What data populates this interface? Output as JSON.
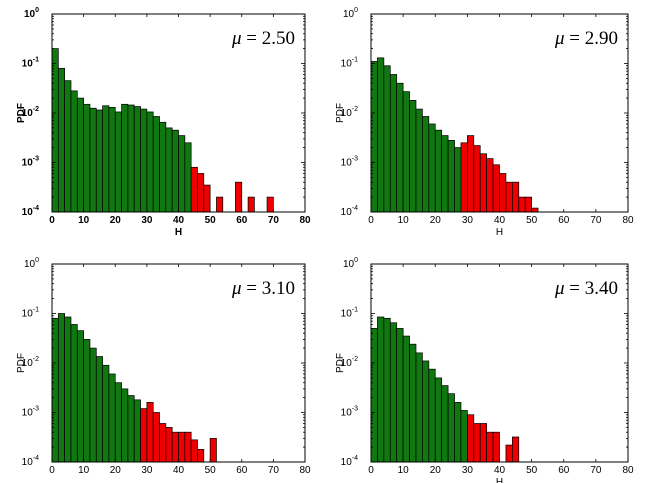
{
  "colors": {
    "green": "#117711",
    "red": "#ee0000",
    "axis": "#000000"
  },
  "chart_data": [
    {
      "type": "bar",
      "title": "",
      "annotation": {
        "symbol": "μ",
        "text": "= 2.50"
      },
      "xlabel": "H",
      "ylabel": "PDF",
      "bold_labels": true,
      "xlim": [
        0,
        80
      ],
      "ylim": [
        0.0001,
        1
      ],
      "yscale": "log",
      "xticks": [
        "0",
        "10",
        "20",
        "30",
        "40",
        "50",
        "60",
        "70",
        "80"
      ],
      "yticks": [
        {
          "base": "10",
          "exp": "0"
        },
        {
          "base": "10",
          "exp": "-1"
        },
        {
          "base": "10",
          "exp": "-2"
        },
        {
          "base": "10",
          "exp": "-3"
        },
        {
          "base": "10",
          "exp": "-4"
        }
      ],
      "bin_width": 2,
      "series": [
        {
          "color": "green",
          "x": [
            0,
            2,
            4,
            6,
            8,
            10,
            12,
            14,
            16,
            18,
            20,
            22,
            24,
            26,
            28,
            30,
            32,
            34,
            36,
            38,
            40,
            42
          ],
          "values": [
            0.2,
            0.08,
            0.045,
            0.028,
            0.02,
            0.015,
            0.0125,
            0.0115,
            0.014,
            0.013,
            0.0105,
            0.015,
            0.0145,
            0.0135,
            0.012,
            0.0105,
            0.0085,
            0.0065,
            0.005,
            0.0045,
            0.0035,
            0.0025
          ]
        },
        {
          "color": "red",
          "x": [
            44,
            46,
            48,
            52,
            58,
            62,
            68
          ],
          "values": [
            0.0008,
            0.0006,
            0.00035,
            0.0002,
            0.0004,
            0.0002,
            0.0002
          ]
        }
      ]
    },
    {
      "type": "bar",
      "title": "",
      "annotation": {
        "symbol": "μ",
        "text": "= 2.90"
      },
      "xlabel": "H",
      "ylabel": "PDF",
      "bold_labels": false,
      "xlim": [
        0,
        80
      ],
      "ylim": [
        0.0001,
        1
      ],
      "yscale": "log",
      "xticks": [
        "0",
        "10",
        "20",
        "30",
        "40",
        "50",
        "60",
        "70",
        "80"
      ],
      "yticks": [
        {
          "base": "10",
          "exp": "0"
        },
        {
          "base": "10",
          "exp": "-1"
        },
        {
          "base": "10",
          "exp": "-2"
        },
        {
          "base": "10",
          "exp": "-3"
        },
        {
          "base": "10",
          "exp": "-4"
        }
      ],
      "bin_width": 2,
      "series": [
        {
          "color": "green",
          "x": [
            0,
            2,
            4,
            6,
            8,
            10,
            12,
            14,
            16,
            18,
            20,
            22,
            24,
            26
          ],
          "values": [
            0.11,
            0.13,
            0.09,
            0.06,
            0.04,
            0.027,
            0.018,
            0.012,
            0.0085,
            0.006,
            0.0045,
            0.0035,
            0.0028,
            0.002
          ]
        },
        {
          "color": "red",
          "x": [
            28,
            30,
            32,
            34,
            36,
            38,
            40,
            42,
            44,
            46,
            48,
            50
          ],
          "values": [
            0.0025,
            0.0035,
            0.0022,
            0.0015,
            0.0012,
            0.0009,
            0.0006,
            0.0004,
            0.0004,
            0.0002,
            0.0002,
            0.00012
          ]
        }
      ]
    },
    {
      "type": "bar",
      "title": "",
      "annotation": {
        "symbol": "μ",
        "text": "= 3.10"
      },
      "xlabel": "",
      "ylabel": "PDF",
      "bold_labels": false,
      "xlim": [
        0,
        80
      ],
      "ylim": [
        0.0001,
        1
      ],
      "yscale": "log",
      "xticks": [
        "0",
        "10",
        "20",
        "30",
        "40",
        "50",
        "60",
        "70",
        "80"
      ],
      "yticks": [
        {
          "base": "10",
          "exp": "0"
        },
        {
          "base": "10",
          "exp": "-1"
        },
        {
          "base": "10",
          "exp": "-2"
        },
        {
          "base": "10",
          "exp": "-3"
        },
        {
          "base": "10",
          "exp": "-4"
        }
      ],
      "bin_width": 2,
      "series": [
        {
          "color": "green",
          "x": [
            0,
            2,
            4,
            6,
            8,
            10,
            12,
            14,
            16,
            18,
            20,
            22,
            24,
            26
          ],
          "values": [
            0.08,
            0.1,
            0.085,
            0.06,
            0.045,
            0.03,
            0.02,
            0.0135,
            0.009,
            0.006,
            0.004,
            0.003,
            0.0022,
            0.0018
          ]
        },
        {
          "color": "red",
          "x": [
            28,
            30,
            32,
            34,
            36,
            38,
            40,
            42,
            44,
            46,
            50
          ],
          "values": [
            0.0012,
            0.0016,
            0.001,
            0.0006,
            0.0005,
            0.0004,
            0.0004,
            0.0004,
            0.00028,
            0.00018,
            0.0003
          ]
        }
      ]
    },
    {
      "type": "bar",
      "title": "",
      "annotation": {
        "symbol": "μ",
        "text": "= 3.40"
      },
      "xlabel": "H",
      "ylabel": "PDF",
      "bold_labels": false,
      "xlim": [
        0,
        80
      ],
      "ylim": [
        0.0001,
        1
      ],
      "yscale": "log",
      "xticks": [
        "0",
        "10",
        "20",
        "30",
        "40",
        "50",
        "60",
        "70",
        "80"
      ],
      "yticks": [
        {
          "base": "10",
          "exp": "0"
        },
        {
          "base": "10",
          "exp": "-1"
        },
        {
          "base": "10",
          "exp": "-2"
        },
        {
          "base": "10",
          "exp": "-3"
        },
        {
          "base": "10",
          "exp": "-4"
        }
      ],
      "bin_width": 2,
      "series": [
        {
          "color": "green",
          "x": [
            0,
            2,
            4,
            6,
            8,
            10,
            12,
            14,
            16,
            18,
            20,
            22,
            24,
            26,
            28
          ],
          "values": [
            0.05,
            0.085,
            0.08,
            0.065,
            0.05,
            0.035,
            0.024,
            0.016,
            0.011,
            0.0075,
            0.005,
            0.0035,
            0.0024,
            0.0016,
            0.0011
          ]
        },
        {
          "color": "red",
          "x": [
            30,
            32,
            34,
            36,
            38,
            42,
            44
          ],
          "values": [
            0.0009,
            0.0006,
            0.0006,
            0.0004,
            0.0004,
            0.00022,
            0.00032
          ]
        }
      ]
    }
  ]
}
